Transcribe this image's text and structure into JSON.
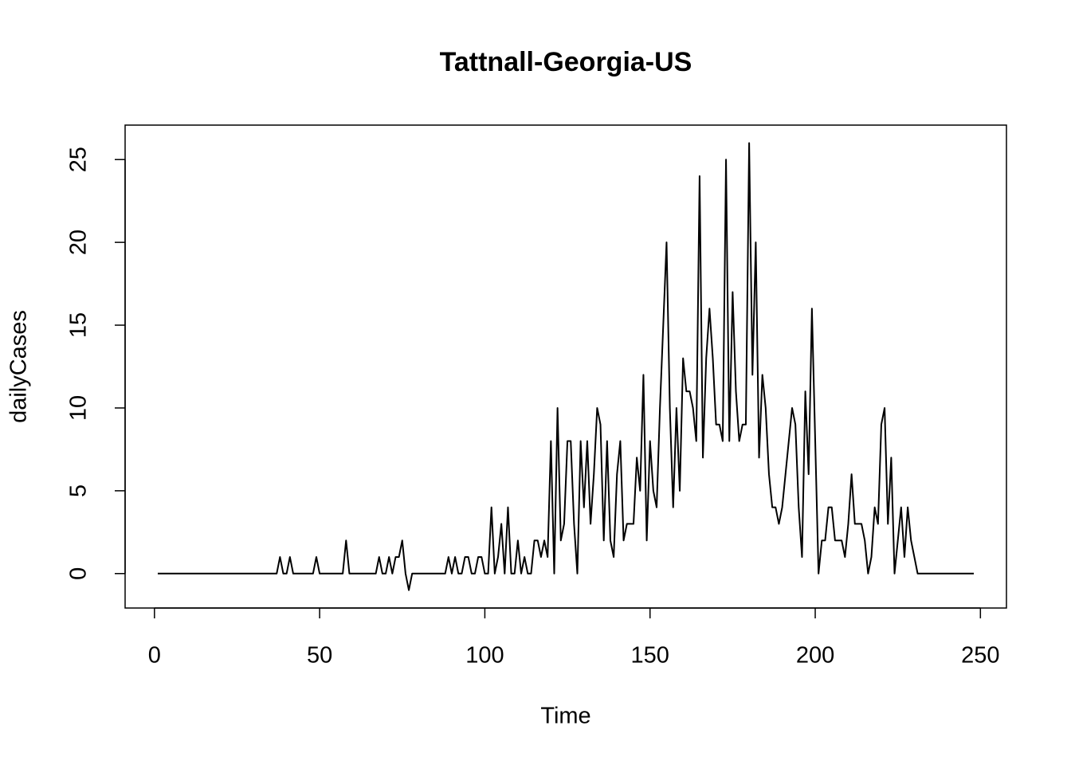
{
  "chart_data": {
    "type": "line",
    "title": "Tattnall-Georgia-US",
    "x_label": "Time",
    "y_label": "dailyCases",
    "color": "#000000",
    "x": [
      1,
      2,
      3,
      4,
      5,
      6,
      7,
      8,
      9,
      10,
      11,
      12,
      13,
      14,
      15,
      16,
      17,
      18,
      19,
      20,
      21,
      22,
      23,
      24,
      25,
      26,
      27,
      28,
      29,
      30,
      31,
      32,
      33,
      34,
      35,
      36,
      37,
      38,
      39,
      40,
      41,
      42,
      43,
      44,
      45,
      46,
      47,
      48,
      49,
      50,
      51,
      52,
      53,
      54,
      55,
      56,
      57,
      58,
      59,
      60,
      61,
      62,
      63,
      64,
      65,
      66,
      67,
      68,
      69,
      70,
      71,
      72,
      73,
      74,
      75,
      76,
      77,
      78,
      79,
      80,
      81,
      82,
      83,
      84,
      85,
      86,
      87,
      88,
      89,
      90,
      91,
      92,
      93,
      94,
      95,
      96,
      97,
      98,
      99,
      100,
      101,
      102,
      103,
      104,
      105,
      106,
      107,
      108,
      109,
      110,
      111,
      112,
      113,
      114,
      115,
      116,
      117,
      118,
      119,
      120,
      121,
      122,
      123,
      124,
      125,
      126,
      127,
      128,
      129,
      130,
      131,
      132,
      133,
      134,
      135,
      136,
      137,
      138,
      139,
      140,
      141,
      142,
      143,
      144,
      145,
      146,
      147,
      148,
      149,
      150,
      151,
      152,
      153,
      154,
      155,
      156,
      157,
      158,
      159,
      160,
      161,
      162,
      163,
      164,
      165,
      166,
      167,
      168,
      169,
      170,
      171,
      172,
      173,
      174,
      175,
      176,
      177,
      178,
      179,
      180,
      181,
      182,
      183,
      184,
      185,
      186,
      187,
      188,
      189,
      190,
      191,
      192,
      193,
      194,
      195,
      196,
      197,
      198,
      199,
      200,
      201,
      202,
      203,
      204,
      205,
      206,
      207,
      208,
      209,
      210,
      211,
      212,
      213,
      214,
      215,
      216,
      217,
      218,
      219,
      220,
      221,
      222,
      223,
      224,
      225,
      226,
      227,
      228,
      229,
      230,
      231,
      232,
      233,
      234,
      235,
      236,
      237,
      238,
      239,
      240,
      241,
      242,
      243,
      244,
      245,
      246,
      247,
      248
    ],
    "values": [
      0,
      0,
      0,
      0,
      0,
      0,
      0,
      0,
      0,
      0,
      0,
      0,
      0,
      0,
      0,
      0,
      0,
      0,
      0,
      0,
      0,
      0,
      0,
      0,
      0,
      0,
      0,
      0,
      0,
      0,
      0,
      0,
      0,
      0,
      0,
      0,
      0,
      1,
      0,
      0,
      1,
      0,
      0,
      0,
      0,
      0,
      0,
      0,
      1,
      0,
      0,
      0,
      0,
      0,
      0,
      0,
      0,
      2,
      0,
      0,
      0,
      0,
      0,
      0,
      0,
      0,
      0,
      1,
      0,
      0,
      1,
      0,
      1,
      1,
      2,
      0,
      -1,
      0,
      0,
      0,
      0,
      0,
      0,
      0,
      0,
      0,
      0,
      0,
      1,
      0,
      1,
      0,
      0,
      1,
      1,
      0,
      0,
      1,
      1,
      0,
      0,
      4,
      0,
      1,
      3,
      0,
      4,
      0,
      0,
      2,
      0,
      1,
      0,
      0,
      2,
      2,
      1,
      2,
      1,
      8,
      0,
      10,
      2,
      3,
      8,
      8,
      3,
      0,
      8,
      4,
      8,
      3,
      6,
      10,
      9,
      2,
      8,
      2,
      1,
      6,
      8,
      2,
      3,
      3,
      3,
      7,
      5,
      12,
      2,
      8,
      5,
      4,
      10,
      15,
      20,
      10,
      4,
      10,
      5,
      13,
      11,
      11,
      10,
      8,
      24,
      7,
      13,
      16,
      13,
      9,
      9,
      8,
      25,
      8,
      17,
      11,
      8,
      9,
      9,
      26,
      12,
      20,
      7,
      12,
      10,
      6,
      4,
      4,
      3,
      4,
      6,
      8,
      10,
      9,
      4,
      1,
      11,
      6,
      16,
      8,
      0,
      2,
      2,
      4,
      4,
      2,
      2,
      2,
      1,
      3,
      6,
      3,
      3,
      3,
      2,
      0,
      1,
      4,
      3,
      9,
      10,
      3,
      7,
      0,
      2,
      4,
      1,
      4,
      2,
      1,
      0,
      0,
      0,
      0,
      0,
      0,
      0,
      0,
      0,
      0,
      0,
      0,
      0,
      0,
      0,
      0,
      0,
      0
    ],
    "xlim": [
      -8.88,
      257.88
    ],
    "ylim": [
      -2.08,
      27.08
    ],
    "xticks": [
      0,
      50,
      100,
      150,
      200,
      250
    ],
    "yticks": [
      0,
      5,
      10,
      15,
      20,
      25
    ],
    "grid": false
  }
}
